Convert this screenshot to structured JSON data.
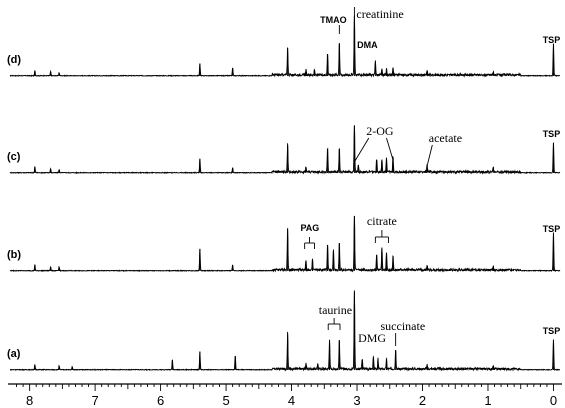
{
  "chart_data": {
    "type": "line",
    "x_axis": {
      "range": [
        8.3,
        -0.1
      ],
      "reversed": true,
      "tick_labels": [
        "8",
        "7",
        "6",
        "5",
        "4",
        "3",
        "2",
        "1",
        "0"
      ],
      "tick_values": [
        8,
        7,
        6,
        5,
        4,
        3,
        2,
        1,
        0
      ]
    },
    "grid": false,
    "series": [
      {
        "name": "(d)",
        "peaks": [
          {
            "ppm": 7.92,
            "h": 5
          },
          {
            "ppm": 7.68,
            "h": 4
          },
          {
            "ppm": 7.55,
            "h": 3
          },
          {
            "ppm": 5.4,
            "h": 12
          },
          {
            "ppm": 4.9,
            "h": 8
          },
          {
            "ppm": 4.06,
            "h": 28
          },
          {
            "ppm": 3.78,
            "h": 5
          },
          {
            "ppm": 3.65,
            "h": 5
          },
          {
            "ppm": 3.45,
            "h": 22
          },
          {
            "ppm": 3.27,
            "h": 33
          },
          {
            "ppm": 3.04,
            "h": 60
          },
          {
            "ppm": 2.72,
            "h": 14
          },
          {
            "ppm": 2.62,
            "h": 6
          },
          {
            "ppm": 2.55,
            "h": 6
          },
          {
            "ppm": 2.45,
            "h": 7
          },
          {
            "ppm": 1.93,
            "h": 4
          },
          {
            "ppm": 0.92,
            "h": 3
          },
          {
            "ppm": 0.0,
            "h": 32
          }
        ],
        "annotations": [
          {
            "text": "creatinine",
            "style": "serif",
            "ppm": 3.04
          },
          {
            "text": "TMAO",
            "style": "bold",
            "ppm": 3.27
          },
          {
            "text": "DMA",
            "style": "bold",
            "ppm": 2.72
          },
          {
            "text": "TSP",
            "style": "bold",
            "ppm": 0.0
          }
        ]
      },
      {
        "name": "(c)",
        "peaks": [
          {
            "ppm": 7.92,
            "h": 6
          },
          {
            "ppm": 7.68,
            "h": 4
          },
          {
            "ppm": 7.55,
            "h": 3
          },
          {
            "ppm": 5.4,
            "h": 14
          },
          {
            "ppm": 4.9,
            "h": 5
          },
          {
            "ppm": 4.06,
            "h": 28
          },
          {
            "ppm": 3.78,
            "h": 5
          },
          {
            "ppm": 3.45,
            "h": 24
          },
          {
            "ppm": 3.27,
            "h": 24
          },
          {
            "ppm": 3.04,
            "h": 47
          },
          {
            "ppm": 2.98,
            "h": 8
          },
          {
            "ppm": 2.7,
            "h": 13
          },
          {
            "ppm": 2.62,
            "h": 12
          },
          {
            "ppm": 2.55,
            "h": 14
          },
          {
            "ppm": 2.45,
            "h": 16
          },
          {
            "ppm": 1.93,
            "h": 7
          },
          {
            "ppm": 0.92,
            "h": 5
          },
          {
            "ppm": 0.0,
            "h": 30
          }
        ],
        "annotations": [
          {
            "text": "2-OG",
            "style": "serif"
          },
          {
            "text": "acetate",
            "style": "serif",
            "ppm": 1.93
          },
          {
            "text": "TSP",
            "style": "bold",
            "ppm": 0.0
          }
        ]
      },
      {
        "name": "(b)",
        "peaks": [
          {
            "ppm": 7.92,
            "h": 6
          },
          {
            "ppm": 7.68,
            "h": 4
          },
          {
            "ppm": 7.55,
            "h": 4
          },
          {
            "ppm": 5.4,
            "h": 22
          },
          {
            "ppm": 4.9,
            "h": 6
          },
          {
            "ppm": 4.06,
            "h": 42
          },
          {
            "ppm": 3.78,
            "h": 10
          },
          {
            "ppm": 3.68,
            "h": 10
          },
          {
            "ppm": 3.45,
            "h": 26
          },
          {
            "ppm": 3.36,
            "h": 20
          },
          {
            "ppm": 3.27,
            "h": 28
          },
          {
            "ppm": 3.04,
            "h": 55
          },
          {
            "ppm": 2.7,
            "h": 16
          },
          {
            "ppm": 2.62,
            "h": 22
          },
          {
            "ppm": 2.55,
            "h": 18
          },
          {
            "ppm": 2.45,
            "h": 14
          },
          {
            "ppm": 1.93,
            "h": 5
          },
          {
            "ppm": 0.92,
            "h": 4
          },
          {
            "ppm": 0.0,
            "h": 38
          }
        ],
        "annotations": [
          {
            "text": "PAG",
            "style": "bold"
          },
          {
            "text": "citrate",
            "style": "serif"
          },
          {
            "text": "TSP",
            "style": "bold",
            "ppm": 0.0
          }
        ]
      },
      {
        "name": "(a)",
        "peaks": [
          {
            "ppm": 7.92,
            "h": 5
          },
          {
            "ppm": 7.55,
            "h": 4
          },
          {
            "ppm": 7.35,
            "h": 3
          },
          {
            "ppm": 5.82,
            "h": 10
          },
          {
            "ppm": 5.4,
            "h": 18
          },
          {
            "ppm": 4.86,
            "h": 14
          },
          {
            "ppm": 4.06,
            "h": 36
          },
          {
            "ppm": 3.78,
            "h": 6
          },
          {
            "ppm": 3.6,
            "h": 6
          },
          {
            "ppm": 3.42,
            "h": 30
          },
          {
            "ppm": 3.27,
            "h": 30
          },
          {
            "ppm": 3.04,
            "h": 78
          },
          {
            "ppm": 2.92,
            "h": 10
          },
          {
            "ppm": 2.75,
            "h": 12
          },
          {
            "ppm": 2.68,
            "h": 10
          },
          {
            "ppm": 2.55,
            "h": 10
          },
          {
            "ppm": 2.41,
            "h": 20
          },
          {
            "ppm": 1.93,
            "h": 4
          },
          {
            "ppm": 0.92,
            "h": 3
          },
          {
            "ppm": 0.0,
            "h": 30
          }
        ],
        "annotations": [
          {
            "text": "taurine",
            "style": "serif"
          },
          {
            "text": "succinate",
            "style": "serif",
            "ppm": 2.41
          },
          {
            "text": "DMG",
            "style": "serif",
            "ppm": 2.92
          },
          {
            "text": "TSP",
            "style": "bold",
            "ppm": 0.0
          }
        ]
      }
    ]
  }
}
